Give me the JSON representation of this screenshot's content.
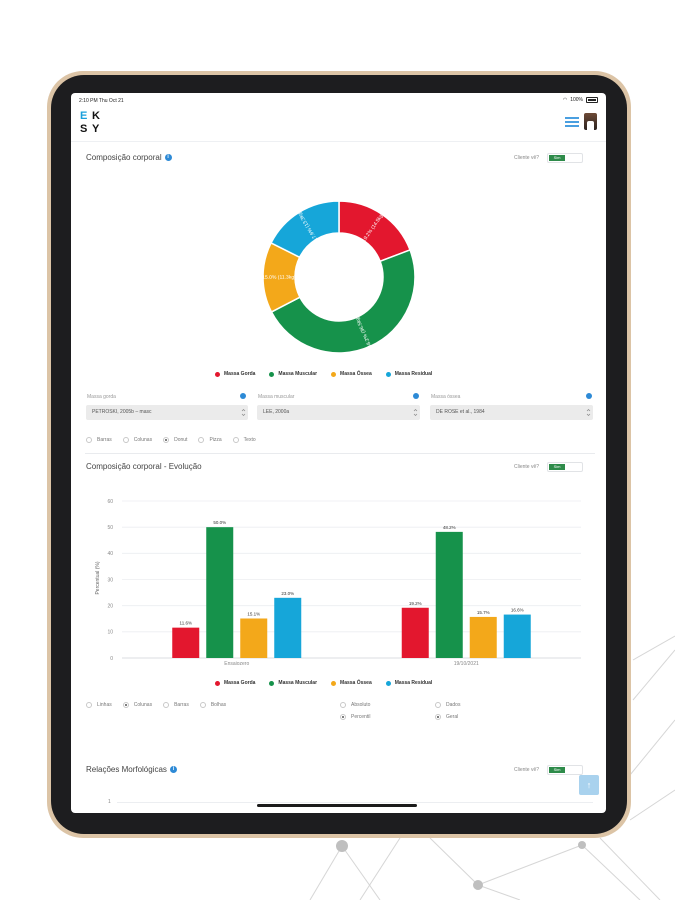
{
  "status_bar": {
    "time": "2:10 PM   Thu Oct 21",
    "battery": "100%"
  },
  "logo": {
    "letters": [
      "E",
      "K",
      "S",
      "Y"
    ]
  },
  "toggle_label": "Cliente vê?",
  "toggle_value": "Sim",
  "section1": {
    "title": "Composição corporal",
    "chart_data": {
      "type": "pie",
      "categories": [
        "Massa Gorda",
        "Massa Muscular",
        "Massa Óssea",
        "Massa Residual"
      ],
      "values": [
        19.2,
        48.2,
        15.0,
        17.6
      ],
      "data_labels": [
        "19.2% (14.5kg)",
        "48.2% (36.5kg)",
        "15.0% (11.3kg)",
        "17.6% (13.3kg)"
      ],
      "legend": "bottom"
    },
    "fields": [
      {
        "label": "Massa gorda",
        "value": "PETROSKI, 2005b – masc"
      },
      {
        "label": "Massa muscular",
        "value": "LEE, 2000a"
      },
      {
        "label": "Massa óssea",
        "value": "DE ROSE et al., 1984"
      }
    ],
    "chart_types": [
      {
        "label": "Barras",
        "selected": false
      },
      {
        "label": "Colunas",
        "selected": false
      },
      {
        "label": "Donut",
        "selected": true
      },
      {
        "label": "Pizza",
        "selected": false
      },
      {
        "label": "Texto",
        "selected": false
      }
    ]
  },
  "section2": {
    "title": "Composição corporal - Evolução",
    "chart_data": {
      "type": "bar",
      "categories": [
        "Ensaiozero",
        "19/10/2021"
      ],
      "series": [
        {
          "name": "Massa Gorda",
          "values": [
            11.6,
            19.2
          ]
        },
        {
          "name": "Massa Muscular",
          "values": [
            50.0,
            48.2
          ]
        },
        {
          "name": "Massa Óssea",
          "values": [
            15.1,
            15.7
          ]
        },
        {
          "name": "Massa Residual",
          "values": [
            23.0,
            16.6
          ]
        }
      ],
      "data_labels": [
        [
          "11.6%",
          "50.0%",
          "15.1%",
          "23.0%"
        ],
        [
          "19.2%",
          "48.2%",
          "15.7%",
          "16.6%"
        ]
      ],
      "ylabel": "Percentual (%)",
      "ylim": [
        0,
        60
      ],
      "yticks": [
        "0",
        "10",
        "20",
        "30",
        "40",
        "50",
        "60"
      ],
      "grid": true,
      "legend": "bottom"
    },
    "chart_types": [
      {
        "label": "Linhas",
        "selected": false
      },
      {
        "label": "Colunas",
        "selected": true
      },
      {
        "label": "Barras",
        "selected": false
      },
      {
        "label": "Bolhas",
        "selected": false
      }
    ],
    "value_modes": [
      {
        "label": "Absoluto",
        "selected": false
      },
      {
        "label": "Percentil",
        "selected": true
      }
    ],
    "scope_modes": [
      {
        "label": "Dados",
        "selected": false
      },
      {
        "label": "Geral",
        "selected": true
      }
    ]
  },
  "section3": {
    "title": "Relações Morfológicas",
    "first_tick": "1"
  },
  "colors": {
    "gorda": "#e3172e",
    "muscular": "#16924b",
    "ossea": "#f3a81a",
    "residual": "#16a6d9"
  },
  "scroll_top_icon": "↑"
}
